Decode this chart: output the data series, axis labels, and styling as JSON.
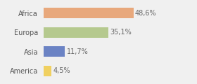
{
  "categories": [
    "Africa",
    "Europa",
    "Asia",
    "America"
  ],
  "values": [
    48.6,
    35.1,
    11.7,
    4.5
  ],
  "labels": [
    "48,6%",
    "35,1%",
    "11,7%",
    "4,5%"
  ],
  "bar_colors": [
    "#e8a87c",
    "#b5c98e",
    "#6b83c4",
    "#f0d060"
  ],
  "background_color": "#f0f0f0",
  "xlim": [
    0,
    70
  ],
  "label_fontsize": 7.0,
  "tick_fontsize": 7.0,
  "bar_height": 0.55
}
